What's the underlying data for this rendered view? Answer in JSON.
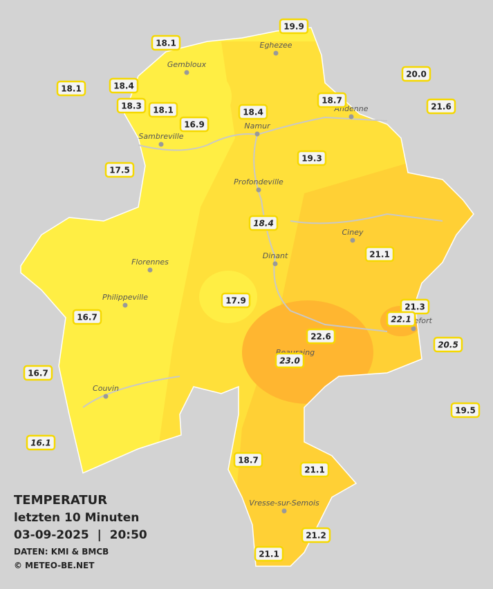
{
  "title": {
    "line1": "TEMPERATUR",
    "line2": "letzten 10 Minuten",
    "line3": "03-09-2025  |  20:50",
    "source": "DATEN: KMI & BMCB",
    "copyright": "© METEO-BE.NET"
  },
  "stations": [
    "19.9",
    "18.1",
    "20.0",
    "18.1",
    "18.4",
    "18.7",
    "21.6",
    "18.3",
    "18.1",
    "18.4",
    "16.9",
    "19.3",
    "17.5",
    "18.4",
    "21.1",
    "17.9",
    "21.3",
    "22.1",
    "16.7",
    "22.6",
    "20.5",
    "23.0",
    "16.7",
    "19.5",
    "16.1",
    "18.7",
    "21.1",
    "21.2",
    "21.1"
  ],
  "cities": [
    "Eghezee",
    "Gembloux",
    "Andenne",
    "Namur",
    "Sambreville",
    "Profondeville",
    "Ciney",
    "Dinant",
    "Florennes",
    "Philippeville",
    "Beauraing",
    "Rochefort",
    "Couvin",
    "Vresse-sur-Semois"
  ]
}
